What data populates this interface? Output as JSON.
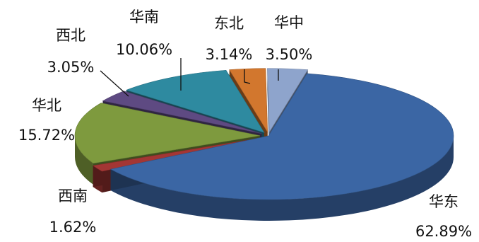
{
  "chart_data": {
    "type": "pie",
    "subtype": "3d-exploded",
    "title": "",
    "legend": "none",
    "series": [
      {
        "values": [
          62.89,
          1.62,
          15.72,
          3.05,
          10.06,
          3.14,
          3.5
        ],
        "categories": [
          "华东",
          "西南",
          "华北",
          "西北",
          "华南",
          "东北",
          "华中"
        ],
        "value_labels": [
          "62.89%",
          "1.62%",
          "15.72%",
          "3.05%",
          "10.06%",
          "3.14%",
          "3.50%"
        ]
      }
    ],
    "colors": [
      "#3b66a4",
      "#a33634",
      "#7e9a3e",
      "#5e4a82",
      "#2e8aa0",
      "#d2772e",
      "#8ea4cc"
    ]
  }
}
